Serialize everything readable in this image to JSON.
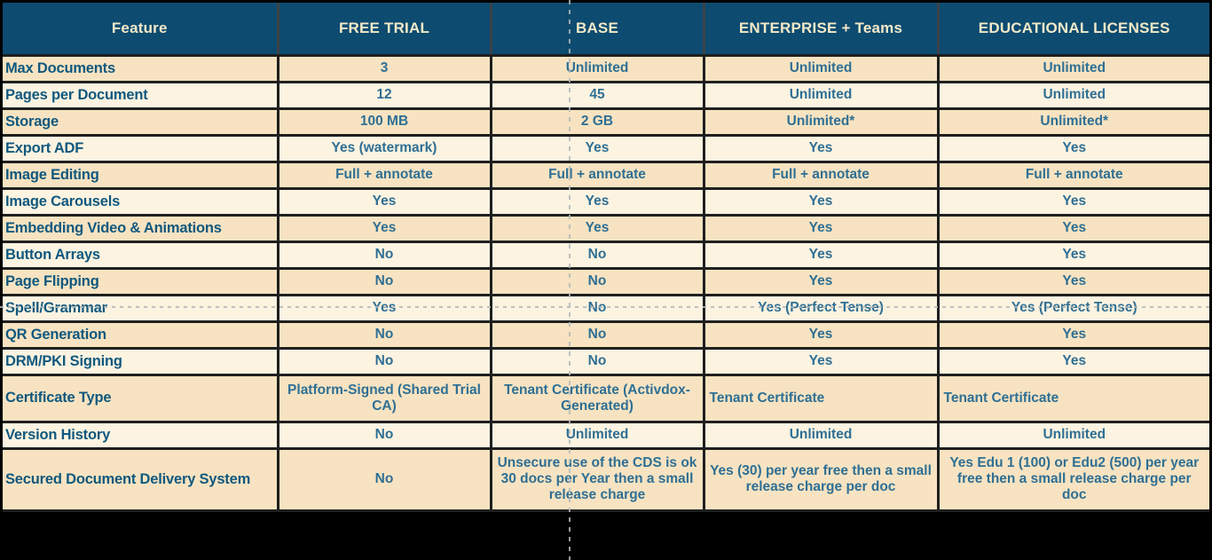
{
  "colors": {
    "header_bg": "#0D4B70",
    "header_text": "#F2E9C8",
    "row_dark": "#F7E3C1",
    "row_light": "#FCF3E1",
    "value_text": "#2F6F94",
    "feature_text": "#10587E",
    "border": "#1F1F1F",
    "page_break": "#B2B8B8"
  },
  "table": {
    "columns": [
      {
        "label": "Feature"
      },
      {
        "label": "FREE TRIAL"
      },
      {
        "label": "BASE"
      },
      {
        "label": "ENTERPRISE + Teams"
      },
      {
        "label": "EDUCATIONAL LICENSES"
      }
    ],
    "rows": [
      {
        "cells": [
          "Max Documents",
          "3",
          "Unlimited",
          "Unlimited",
          "Unlimited"
        ]
      },
      {
        "cells": [
          "Pages per Document",
          "12",
          "45",
          "Unlimited",
          "Unlimited"
        ]
      },
      {
        "cells": [
          "Storage",
          "100 MB",
          "2 GB",
          "Unlimited*",
          "Unlimited*"
        ]
      },
      {
        "cells": [
          "Export ADF",
          "Yes (watermark)",
          "Yes",
          "Yes",
          "Yes"
        ]
      },
      {
        "cells": [
          "Image Editing",
          "Full + annotate",
          "Full + annotate",
          "Full + annotate",
          "Full + annotate"
        ]
      },
      {
        "cells": [
          "Image Carousels",
          "Yes",
          "Yes",
          "Yes",
          "Yes"
        ]
      },
      {
        "cells": [
          "Embedding Video & Animations",
          "Yes",
          "Yes",
          "Yes",
          "Yes"
        ]
      },
      {
        "cells": [
          "Button Arrays",
          "No",
          "No",
          "Yes",
          "Yes"
        ]
      },
      {
        "cells": [
          "Page Flipping",
          "No",
          "No",
          "Yes",
          "Yes"
        ]
      },
      {
        "cells": [
          "Spell/Grammar",
          "Yes",
          "No",
          "Yes (Perfect Tense)",
          "Yes (Perfect Tense)"
        ]
      },
      {
        "cells": [
          "QR Generation",
          "No",
          "No",
          "Yes",
          "Yes"
        ]
      },
      {
        "cells": [
          "DRM/PKI Signing",
          "No",
          "No",
          "Yes",
          "Yes"
        ]
      },
      {
        "cells": [
          "Certificate Type",
          "Platform-Signed (Shared Trial CA)",
          "Tenant Certificate (Activdox-Generated)",
          "Tenant Certificate",
          "Tenant Certificate"
        ],
        "aligns": [
          "left",
          "center",
          "center",
          "left",
          "left"
        ]
      },
      {
        "cells": [
          "Version History",
          "No",
          "Unlimited",
          "Unlimited",
          "Unlimited"
        ]
      },
      {
        "cells": [
          "Secured Document Delivery System",
          "No",
          "Unsecure use of the CDS is ok 30 docs per Year then a small release charge",
          "Yes (30) per year free then a small release charge per doc",
          "Yes Edu 1 (100) or Edu2 (500) per year free then a small release charge per doc"
        ]
      }
    ]
  }
}
